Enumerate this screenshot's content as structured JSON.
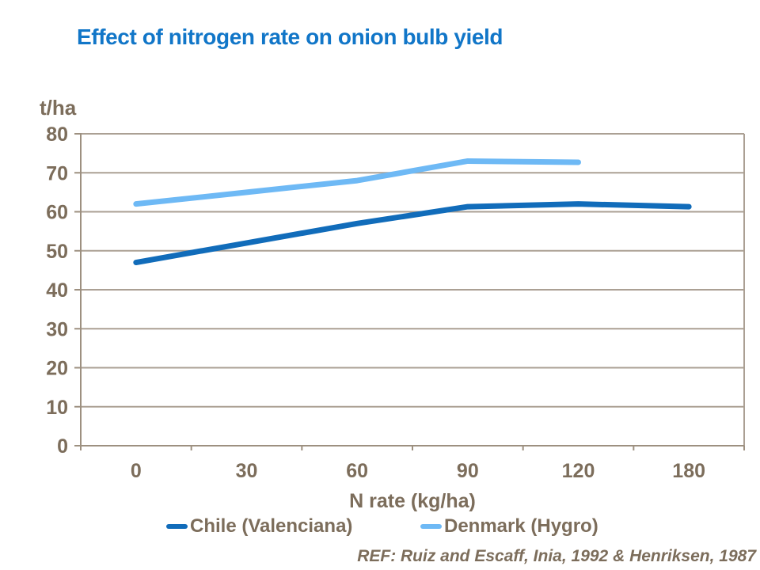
{
  "page": {
    "ref_note": "REF: Ruiz and Escaff, Inia, 1992 & Henriksen, 1987"
  },
  "colors": {
    "title_text": "#1176C8",
    "body_text": "#7C6D5B",
    "gridline": "#ABA094",
    "axis": "#9D9080",
    "background": "#FFFFFF"
  },
  "chart_data": {
    "type": "line",
    "title": "Effect of nitrogen rate on onion bulb yield",
    "ylabel": "t/ha",
    "xlabel": "N rate (kg/ha)",
    "categories": [
      "0",
      "30",
      "60",
      "90",
      "120",
      "180"
    ],
    "series": [
      {
        "name": "Chile (Valenciana)",
        "color": "#116CBA",
        "values": [
          47,
          52,
          57,
          61.3,
          62,
          61.3
        ]
      },
      {
        "name": "Denmark (Hygro)",
        "color": "#6EB9F5",
        "values": [
          62,
          65,
          68,
          73,
          72.7,
          null
        ]
      }
    ],
    "ylim": [
      0,
      80
    ],
    "yticks": [
      0,
      10,
      20,
      30,
      40,
      50,
      60,
      70,
      80
    ],
    "grid": "horizontal",
    "legend_position": "bottom"
  }
}
